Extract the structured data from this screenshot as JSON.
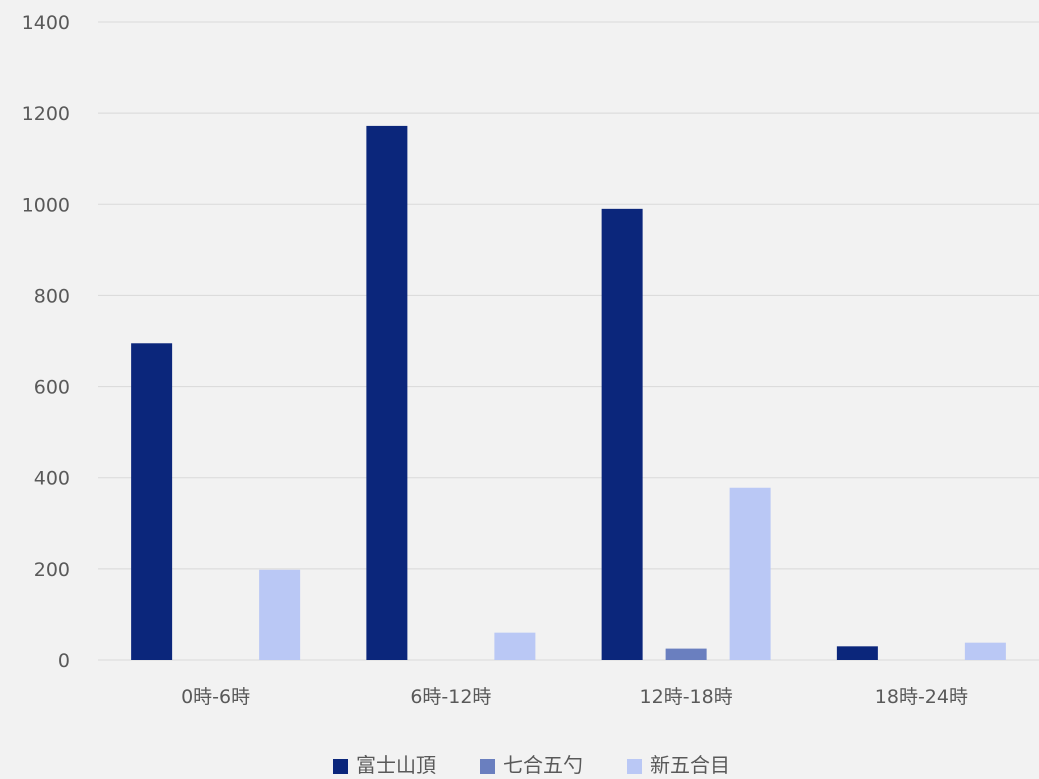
{
  "chart_data": {
    "type": "bar",
    "title": "",
    "xlabel": "",
    "ylabel": "",
    "categories": [
      "0時-6時",
      "6時-12時",
      "12時-18時",
      "18時-24時"
    ],
    "series": [
      {
        "name": "富士山頂",
        "color": "#0b267b",
        "values": [
          695,
          1172,
          990,
          30
        ]
      },
      {
        "name": "七合五勺",
        "color": "#6a7fbf",
        "values": [
          0,
          0,
          25,
          0
        ]
      },
      {
        "name": "新五合目",
        "color": "#bac8f5",
        "values": [
          198,
          60,
          378,
          38
        ]
      }
    ],
    "ylim": [
      0,
      1400
    ],
    "yticks": [
      0,
      200,
      400,
      600,
      800,
      1000,
      1200,
      1400
    ],
    "grid": true,
    "legend_position": "bottom"
  }
}
